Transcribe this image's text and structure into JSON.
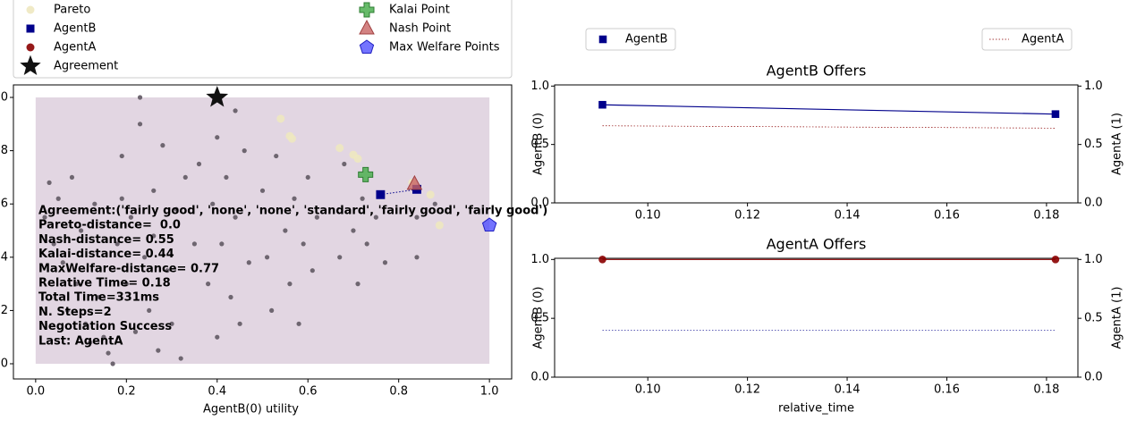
{
  "chart_data": [
    {
      "type": "scatter",
      "xlabel": "AgentB(0) utility",
      "xlim": [
        -0.049,
        1.049
      ],
      "ylim": [
        -0.057,
        1.047
      ],
      "xticks": [
        {
          "value": 0,
          "label": "0.0"
        },
        0.2,
        0.4,
        0.6,
        0.8,
        {
          "value": 1,
          "label": "1.0"
        }
      ],
      "yticks": [
        {
          "value": 0,
          "label": "0.0"
        },
        0.2,
        0.4,
        0.6,
        0.8,
        {
          "value": 1,
          "label": "1.0"
        }
      ],
      "region": {
        "x": [
          0,
          1
        ],
        "y": [
          0,
          1
        ],
        "color": "#e2d6e2"
      },
      "series": [
        {
          "color": "#6e6670",
          "marker": "dot",
          "x": [
            0.02,
            0.04,
            0.05,
            0.06,
            0.08,
            0.09,
            0.1,
            0.11,
            0.12,
            0.13,
            0.14,
            0.15,
            0.16,
            0.17,
            0.18,
            0.19,
            0.2,
            0.21,
            0.22,
            0.23,
            0.23,
            0.24,
            0.25,
            0.26,
            0.27,
            0.28,
            0.29,
            0.3,
            0.31,
            0.32,
            0.33,
            0.35,
            0.38,
            0.39,
            0.4,
            0.4,
            0.41,
            0.42,
            0.43,
            0.44,
            0.45,
            0.46,
            0.47,
            0.5,
            0.51,
            0.52,
            0.53,
            0.55,
            0.56,
            0.57,
            0.58,
            0.59,
            0.6,
            0.61,
            0.62,
            0.67,
            0.68,
            0.7,
            0.71,
            0.72,
            0.73,
            0.75,
            0.77,
            0.84,
            0.84,
            0.88,
            0.07,
            0.03,
            0.19,
            0.26,
            0.36,
            0.44
          ],
          "y": [
            0.55,
            0.45,
            0.62,
            0.38,
            0.7,
            0.3,
            0.5,
            0.15,
            0.08,
            0.6,
            0.25,
            0.1,
            0.04,
            0.0,
            0.45,
            0.78,
            0.3,
            0.55,
            0.12,
            0.9,
            1.0,
            0.4,
            0.2,
            0.65,
            0.05,
            0.82,
            0.35,
            0.15,
            0.58,
            0.02,
            0.7,
            0.45,
            0.3,
            0.6,
            0.85,
            0.1,
            0.45,
            0.7,
            0.25,
            0.55,
            0.15,
            0.8,
            0.38,
            0.65,
            0.4,
            0.2,
            0.78,
            0.5,
            0.3,
            0.62,
            0.15,
            0.45,
            0.7,
            0.35,
            0.55,
            0.4,
            0.75,
            0.5,
            0.3,
            0.62,
            0.45,
            0.55,
            0.38,
            0.4,
            0.55,
            0.6,
            0.2,
            0.68,
            0.62,
            0.48,
            0.75,
            0.95
          ]
        },
        {
          "name": "Pareto",
          "color": "#eee8c0",
          "marker": "circle",
          "x": [
            0.54,
            0.56,
            0.565,
            0.67,
            0.7,
            0.71,
            0.83,
            0.87,
            0.89
          ],
          "y": [
            0.92,
            0.855,
            0.845,
            0.81,
            0.785,
            0.77,
            0.68,
            0.635,
            0.52
          ]
        },
        {
          "name": "AgentB",
          "color": "#00008b",
          "marker": "square",
          "line": "dotted",
          "x": [
            0.76,
            0.84
          ],
          "y": [
            0.635,
            0.655
          ]
        },
        {
          "name": "AgentA",
          "color": "#8b0000",
          "marker": "circle",
          "x": [
            0.4
          ],
          "y": [
            1.0
          ]
        },
        {
          "name": "Agreement",
          "color": "#111111",
          "marker": "star",
          "x": [
            0.4
          ],
          "y": [
            1.0
          ]
        },
        {
          "name": "Kalai Point",
          "color": "#4caf50",
          "marker": "plus",
          "x": [
            0.727
          ],
          "y": [
            0.71
          ]
        },
        {
          "name": "Nash Point",
          "color": "#c86464",
          "marker": "triangle",
          "x": [
            0.835
          ],
          "y": [
            0.675
          ]
        },
        {
          "name": "Max Welfare Points",
          "color": "#4646ff",
          "marker": "pentagon",
          "x": [
            1.0
          ],
          "y": [
            0.52
          ]
        }
      ],
      "annotations": [
        "Agreement:('fairly good', 'none', 'none', 'standard', 'fairly good', 'fairly good')",
        "Pareto-distance=  0.0",
        "Nash-distance= 0.55",
        "Kalai-distance= 0.44",
        "MaxWelfare-distance= 0.77",
        "Relative Time= 0.18",
        "Total Time=331ms",
        "N. Steps=2",
        "Negotiation Success",
        "Last: AgentA"
      ]
    },
    {
      "type": "line",
      "title": "AgentB Offers",
      "ylabel": "AgentB (0)",
      "y2label": "AgentA (1)",
      "x": [
        0.0909,
        0.1818
      ],
      "xlim": [
        0.0813,
        0.1863
      ],
      "ylim": [
        0,
        1.01
      ],
      "y2lim": [
        0,
        1.01
      ],
      "xticks": [
        {
          "value": 0.1,
          "label": "0.10"
        },
        0.12,
        0.14,
        0.16,
        0.18
      ],
      "yticks": [
        {
          "value": 0,
          "label": "0.0"
        },
        0.5,
        {
          "value": 1,
          "label": "1.0"
        }
      ],
      "y2ticks": [
        {
          "value": 0,
          "label": "0.0"
        },
        0.5,
        {
          "value": 1,
          "label": "1.0"
        }
      ],
      "series": [
        {
          "name": "AgentB",
          "color": "#00008b",
          "marker": "square",
          "line": "solid",
          "values": [
            0.84,
            0.76
          ]
        },
        {
          "name": "AgentA",
          "color": "#8b0000",
          "line": "dotted",
          "axis": "y2",
          "values": [
            0.66,
            0.64
          ]
        }
      ]
    },
    {
      "type": "line",
      "title": "AgentA Offers",
      "ylabel": "AgentB (0)",
      "y2label": "AgentA (1)",
      "xlabel": "relative_time",
      "x": [
        0.0909,
        0.1818
      ],
      "xlim": [
        0.0813,
        0.1863
      ],
      "ylim": [
        0,
        1.01
      ],
      "y2lim": [
        0,
        1.01
      ],
      "xticks": [
        {
          "value": 0.1,
          "label": "0.10"
        },
        0.12,
        0.14,
        0.16,
        0.18
      ],
      "yticks": [
        {
          "value": 0,
          "label": "0.0"
        },
        0.5,
        {
          "value": 1,
          "label": "1.0"
        }
      ],
      "y2ticks": [
        {
          "value": 0,
          "label": "0.0"
        },
        0.5,
        {
          "value": 1,
          "label": "1.0"
        }
      ],
      "series": [
        {
          "color": "#00008b",
          "line": "dotted",
          "values": [
            0.4,
            0.4
          ]
        },
        {
          "color": "#8b0000",
          "marker": "circle",
          "line": "solid",
          "axis": "y2",
          "values": [
            1.0,
            1.0
          ]
        }
      ]
    }
  ]
}
